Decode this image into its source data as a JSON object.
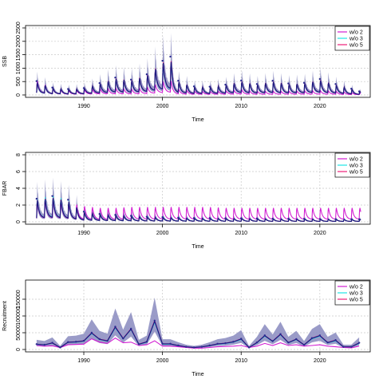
{
  "chart_data": [
    {
      "type": "line",
      "xlabel": "Time",
      "ylabel": "SSB",
      "xlim": [
        1983,
        2026
      ],
      "ylim": [
        0,
        2500
      ],
      "x_ticks": [
        1990,
        2000,
        2010,
        2020
      ],
      "y_ticks": [
        0,
        500,
        1000,
        1500,
        2000,
        2500
      ],
      "grid": true,
      "legend_position": "top-right",
      "band_color": "#8f90c2",
      "seasonal": {
        "start": 1984,
        "end": 2025.2,
        "period": 1
      },
      "series": [
        {
          "name": "w/o 2",
          "color": "#d21ed2",
          "x": [
            1984,
            1986,
            1988,
            1990,
            1992,
            1994,
            1996,
            1998,
            2000,
            2001,
            2002,
            2004,
            2006,
            2008,
            2010,
            2012,
            2014,
            2016,
            2018,
            2020,
            2022,
            2024,
            2025
          ],
          "y": [
            520,
            230,
            150,
            170,
            210,
            230,
            200,
            260,
            470,
            540,
            190,
            130,
            120,
            140,
            180,
            120,
            130,
            130,
            140,
            150,
            130,
            80,
            60
          ]
        },
        {
          "name": "w/o 3",
          "color": "#1ee6e6",
          "x": [
            1984,
            1986,
            1988,
            1990,
            1992,
            1994,
            1996,
            1998,
            2000,
            2001,
            2002,
            2004,
            2006,
            2008,
            2010,
            2012,
            2014,
            2016,
            2018,
            2020,
            2022,
            2024,
            2025
          ],
          "y": [
            450,
            240,
            190,
            220,
            380,
            560,
            500,
            680,
            1100,
            1200,
            470,
            280,
            270,
            330,
            470,
            360,
            460,
            380,
            400,
            520,
            360,
            200,
            110
          ]
        },
        {
          "name": "w/o 5",
          "color": "#ee1e78",
          "x": [
            1984,
            1986,
            1988,
            1990,
            1992,
            1994,
            1996,
            1998,
            2000,
            2001,
            2002,
            2004,
            2006,
            2008,
            2010,
            2012,
            2014,
            2016,
            2018,
            2020,
            2022,
            2024,
            2025
          ],
          "y": [
            470,
            250,
            200,
            230,
            400,
            590,
            520,
            700,
            1160,
            1300,
            480,
            290,
            280,
            350,
            490,
            370,
            480,
            390,
            410,
            540,
            370,
            210,
            120
          ]
        }
      ]
    },
    {
      "type": "line",
      "xlabel": "Time",
      "ylabel": "FBAR",
      "xlim": [
        1983,
        2026
      ],
      "ylim": [
        0,
        8
      ],
      "x_ticks": [
        1990,
        2000,
        2010,
        2020
      ],
      "y_ticks": [
        0,
        2,
        4,
        6,
        8
      ],
      "grid": true,
      "legend_position": "top-right",
      "band_color": "#8f90c2",
      "seasonal": {
        "start": 1984,
        "end": 2025.2,
        "period": 1
      },
      "series": [
        {
          "name": "w/o 2",
          "color": "#d21ed2",
          "x": [
            1984,
            1986,
            1988,
            1990,
            1992,
            1994,
            1996,
            1998,
            2000,
            2002,
            2004,
            2006,
            2008,
            2010,
            2012,
            2014,
            2016,
            2018,
            2020,
            2022,
            2024,
            2025
          ],
          "y": [
            2.3,
            2.5,
            2.2,
            1.8,
            1.6,
            1.6,
            1.7,
            1.7,
            1.7,
            1.7,
            1.7,
            1.7,
            1.6,
            1.6,
            1.6,
            1.6,
            1.6,
            1.6,
            1.6,
            1.6,
            1.6,
            1.6
          ]
        },
        {
          "name": "w/o 3",
          "color": "#1ee6e6",
          "x": [
            1984,
            1986,
            1988,
            1990,
            1992,
            1994,
            1996,
            1998,
            2000,
            2002,
            2004,
            2006,
            2008,
            2010,
            2012,
            2014,
            2016,
            2018,
            2020,
            2022,
            2024,
            2025
          ],
          "y": [
            2.6,
            3.0,
            2.5,
            1.2,
            0.9,
            0.8,
            0.7,
            0.6,
            0.55,
            0.5,
            0.45,
            0.45,
            0.4,
            0.4,
            0.4,
            0.35,
            0.35,
            0.35,
            0.3,
            0.3,
            0.3,
            0.3
          ]
        },
        {
          "name": "w/o 5",
          "color": "#ee1e78",
          "x": [
            1984,
            1986,
            1988,
            1990,
            1992,
            1994,
            1996,
            1998,
            2000,
            2002,
            2004,
            2006,
            2008,
            2010,
            2012,
            2014,
            2016,
            2018,
            2020,
            2022,
            2024,
            2025
          ],
          "y": [
            2.5,
            2.8,
            2.4,
            1.1,
            0.85,
            0.75,
            0.65,
            0.55,
            0.5,
            0.45,
            0.4,
            0.4,
            0.38,
            0.38,
            0.36,
            0.33,
            0.33,
            0.32,
            0.3,
            0.28,
            0.28,
            0.28
          ]
        }
      ]
    },
    {
      "type": "line",
      "xlabel": "Time",
      "ylabel": "Recruitment",
      "xlim": [
        1983,
        2026
      ],
      "ylim": [
        0,
        200000
      ],
      "x_ticks": [
        1990,
        2000,
        2010,
        2020
      ],
      "y_ticks": [
        0,
        50000,
        100000,
        150000
      ],
      "y_tick_labels": [
        "0",
        "50000",
        "100000",
        "150000"
      ],
      "grid": true,
      "legend_position": "top-right",
      "band_color": "#8f90c2",
      "series": [
        {
          "name": "w/o 2",
          "color": "#d21ed2",
          "x": [
            1984,
            1985,
            1986,
            1987,
            1988,
            1989,
            1990,
            1991,
            1992,
            1993,
            1994,
            1995,
            1996,
            1997,
            1998,
            1999,
            2000,
            2001,
            2002,
            2003,
            2004,
            2005,
            2006,
            2007,
            2008,
            2009,
            2010,
            2011,
            2012,
            2013,
            2014,
            2015,
            2016,
            2017,
            2018,
            2019,
            2020,
            2021,
            2022,
            2023,
            2024,
            2025
          ],
          "y": [
            12000,
            10000,
            11000,
            6000,
            14000,
            15000,
            16000,
            32000,
            22000,
            18000,
            34000,
            20000,
            22000,
            12000,
            14000,
            26000,
            10000,
            10000,
            8000,
            6000,
            4000,
            4000,
            6000,
            8000,
            9000,
            10000,
            12000,
            6000,
            10000,
            18000,
            12000,
            20000,
            12000,
            14000,
            10000,
            12000,
            14000,
            10000,
            8000,
            6000,
            5000,
            10000
          ]
        },
        {
          "name": "w/o 3",
          "color": "#1ee6e6",
          "x": [
            1984,
            1985,
            1986,
            1987,
            1988,
            1989,
            1990,
            1991,
            1992,
            1993,
            1994,
            1995,
            1996,
            1997,
            1998,
            1999,
            2000,
            2001,
            2002,
            2003,
            2004,
            2005,
            2006,
            2007,
            2008,
            2009,
            2010,
            2011,
            2012,
            2013,
            2014,
            2015,
            2016,
            2017,
            2018,
            2019,
            2020,
            2021,
            2022,
            2023,
            2024,
            2025
          ],
          "y": [
            15000,
            13000,
            20000,
            6000,
            22000,
            22000,
            25000,
            48000,
            30000,
            25000,
            65000,
            32000,
            60000,
            15000,
            22000,
            82000,
            16000,
            16000,
            12000,
            8000,
            6000,
            8000,
            12000,
            16000,
            18000,
            22000,
            30000,
            6000,
            20000,
            40000,
            24000,
            44000,
            20000,
            30000,
            14000,
            32000,
            40000,
            20000,
            26000,
            8000,
            8000,
            18000
          ]
        },
        {
          "name": "w/o 5",
          "color": "#ee1e78",
          "x": [
            1984,
            1985,
            1986,
            1987,
            1988,
            1989,
            1990,
            1991,
            1992,
            1993,
            1994,
            1995,
            1996,
            1997,
            1998,
            1999,
            2000,
            2001,
            2002,
            2003,
            2004,
            2005,
            2006,
            2007,
            2008,
            2009,
            2010,
            2011,
            2012,
            2013,
            2014,
            2015,
            2016,
            2017,
            2018,
            2019,
            2020,
            2021,
            2022,
            2023,
            2024,
            2025
          ],
          "y": [
            16000,
            14000,
            20000,
            6000,
            22000,
            23000,
            26000,
            50000,
            31000,
            26000,
            68000,
            33000,
            62000,
            16000,
            23000,
            86000,
            17000,
            17000,
            12000,
            8000,
            6000,
            8000,
            12000,
            17000,
            19000,
            23000,
            32000,
            6000,
            21000,
            42000,
            25000,
            46000,
            21000,
            31000,
            14000,
            34000,
            42000,
            21000,
            28000,
            8000,
            8000,
            20000
          ]
        }
      ]
    }
  ]
}
